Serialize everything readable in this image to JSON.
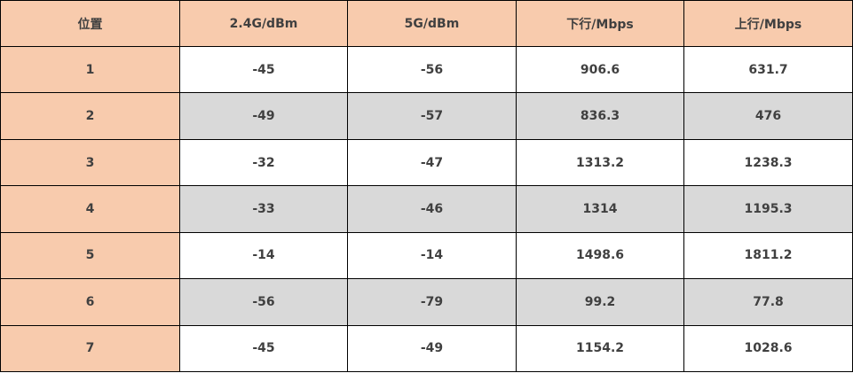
{
  "table": {
    "header": [
      "位置",
      "2.4G/dBm",
      "5G/dBm",
      "下行/Mbps",
      "上行/Mbps"
    ],
    "rows": [
      [
        "1",
        "-45",
        "-56",
        "906.6",
        "631.7"
      ],
      [
        "2",
        "-49",
        "-57",
        "836.3",
        "476"
      ],
      [
        "3",
        "-32",
        "-47",
        "1313.2",
        "1238.3"
      ],
      [
        "4",
        "-33",
        "-46",
        "1314",
        "1195.3"
      ],
      [
        "5",
        "-14",
        "-14",
        "1498.6",
        "1811.2"
      ],
      [
        "6",
        "-56",
        "-79",
        "99.2",
        "77.8"
      ],
      [
        "7",
        "-45",
        "-49",
        "1154.2",
        "1028.6"
      ]
    ]
  }
}
